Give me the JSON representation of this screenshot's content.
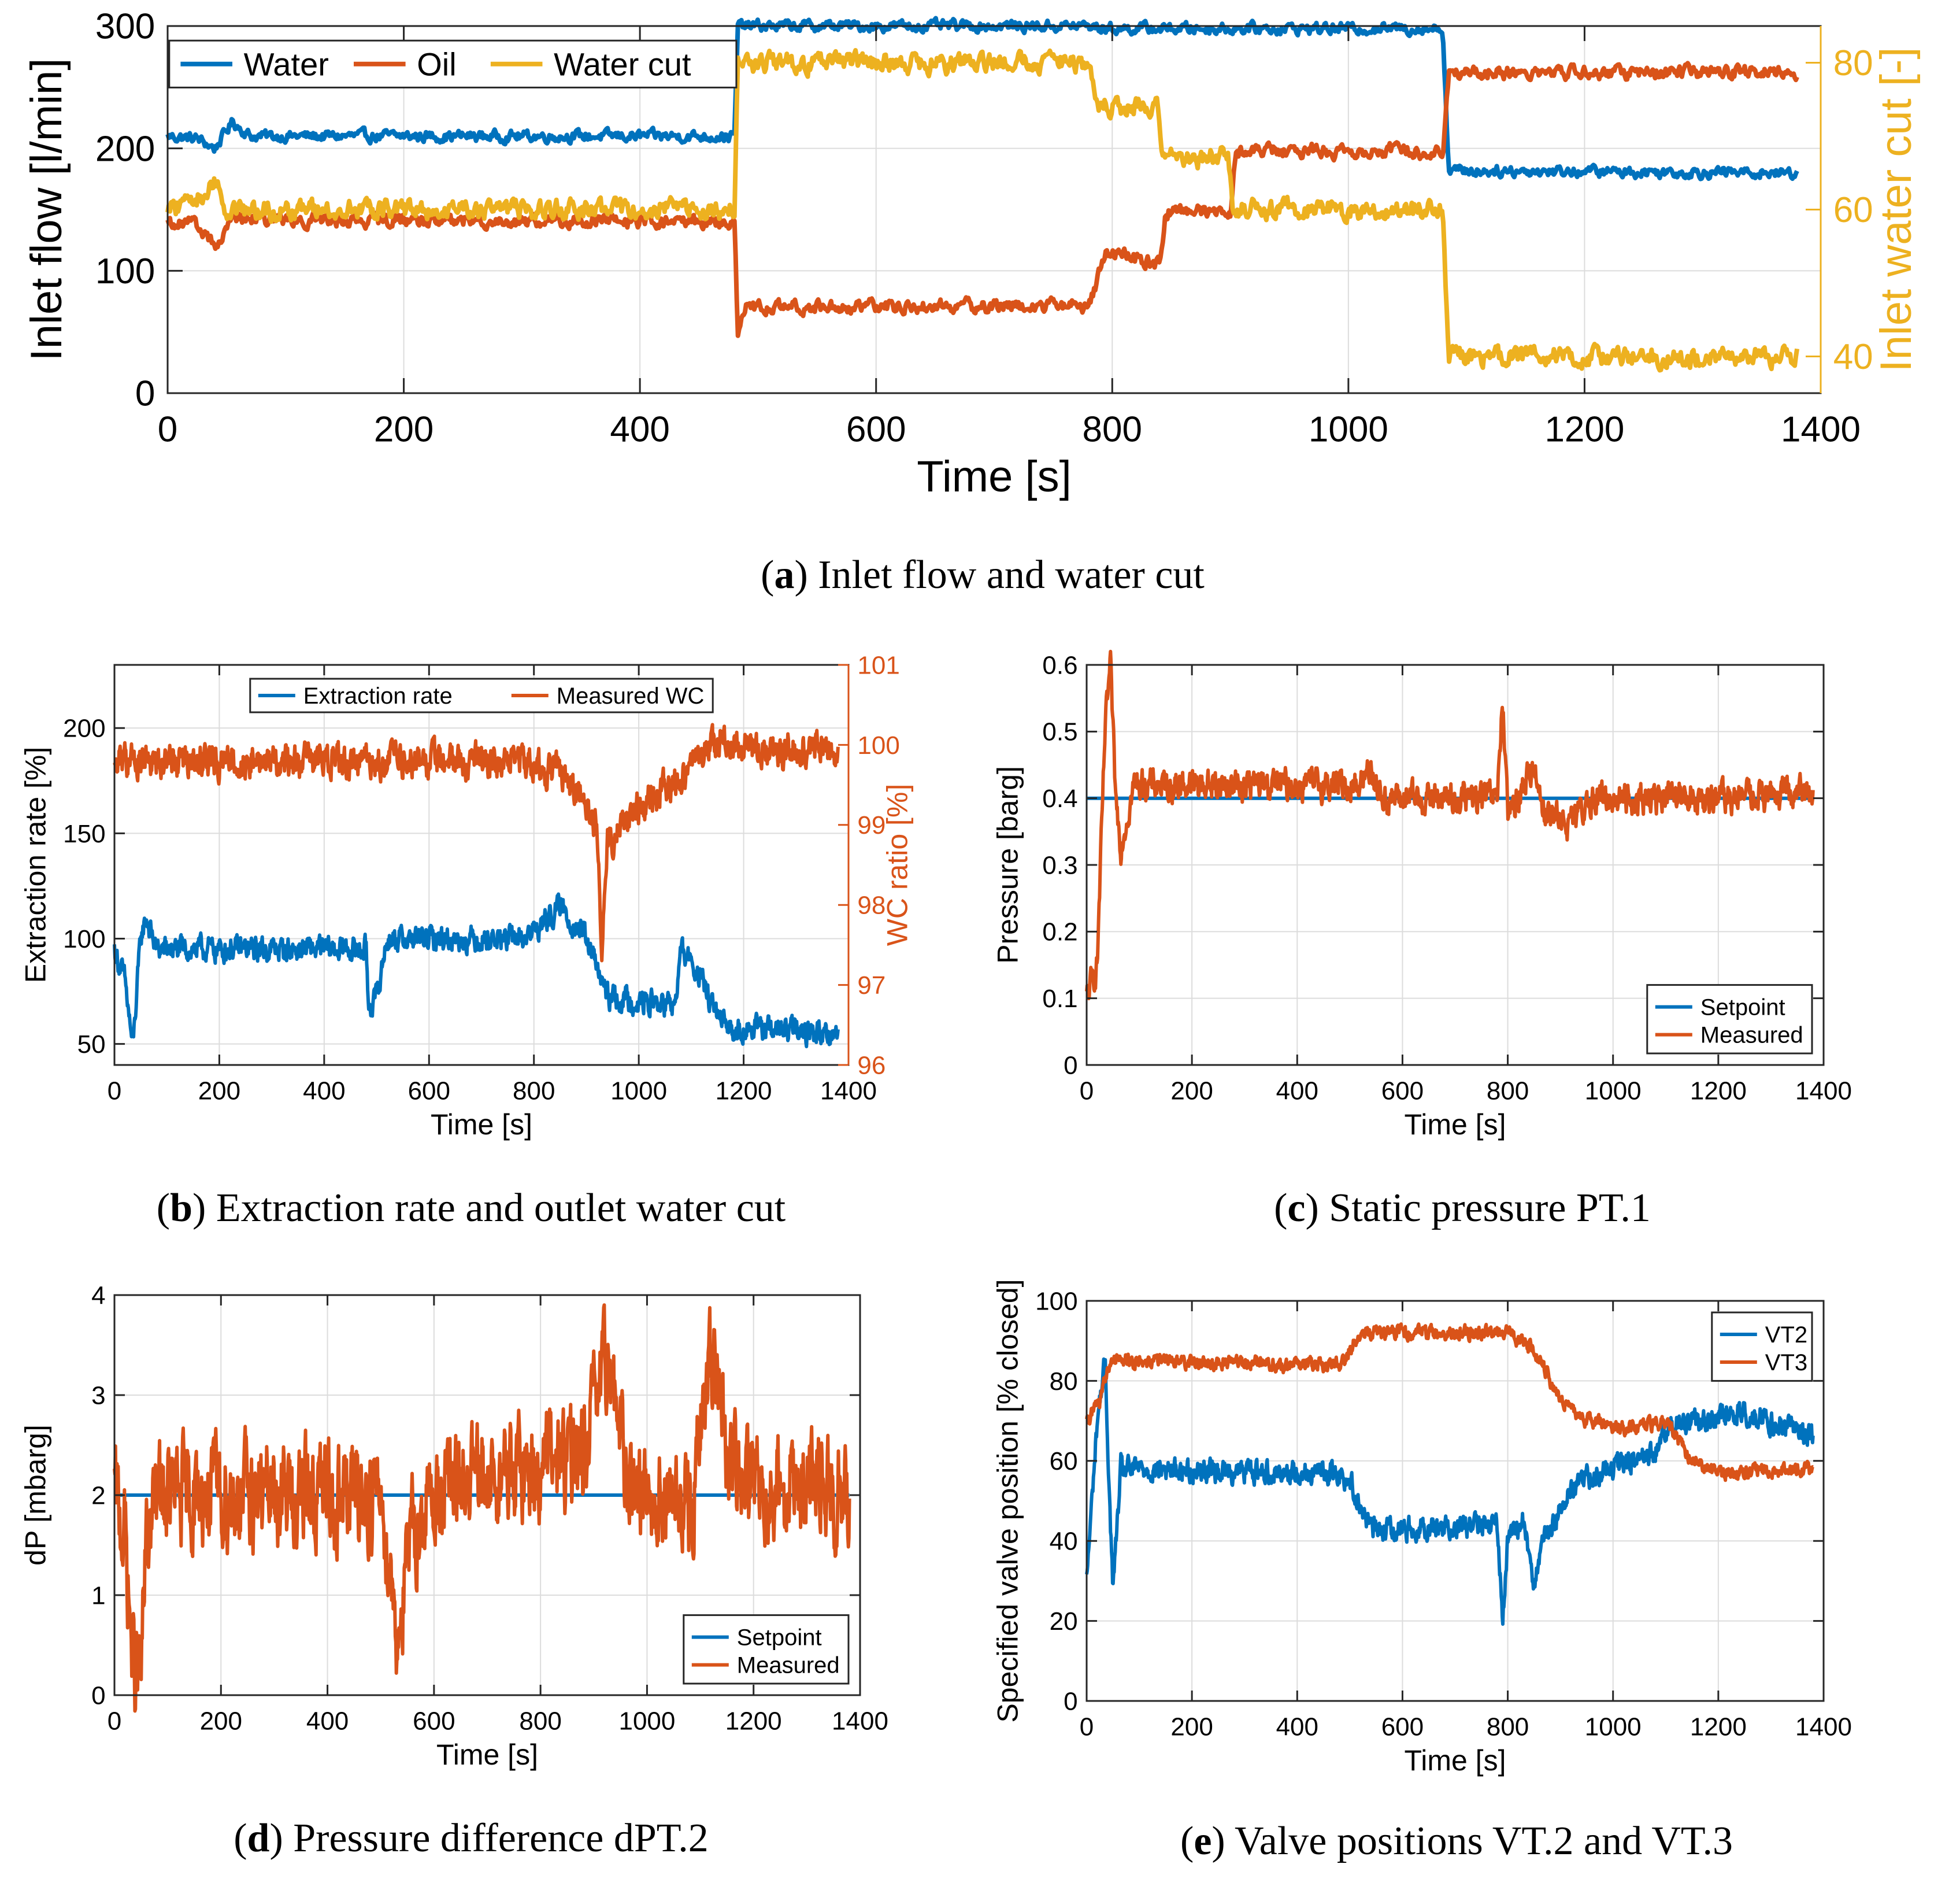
{
  "colors": {
    "blue": "#0072BD",
    "orange": "#D95319",
    "yellow": "#EDB120",
    "grid": "#dcdcdc",
    "axis": "#262626"
  },
  "panels": [
    {
      "id": "a",
      "caption": {
        "letter": "a",
        "text": " Inlet flow and water cut"
      },
      "chart_data": {
        "type": "line",
        "title": "",
        "xlabel": "Time [s]",
        "ylabel": "Inlet flow [l/min]",
        "ylabel_right": "Inlet water cut [-]",
        "xlim": [
          0,
          1400
        ],
        "ylim": [
          0,
          300
        ],
        "ylim_right": [
          35,
          85
        ],
        "xticks": [
          0,
          200,
          400,
          600,
          800,
          1000,
          1200,
          1400
        ],
        "yticks": [
          0,
          100,
          200,
          300
        ],
        "yticks_right": [
          40,
          60,
          80
        ],
        "legend": {
          "position": "top-left",
          "orientation": "horizontal"
        },
        "series": [
          {
            "name": "Water",
            "color": "blue",
            "axis": "left",
            "noise": 4,
            "points": [
              [
                0,
                210
              ],
              [
                25,
                208
              ],
              [
                40,
                200
              ],
              [
                55,
                222
              ],
              [
                70,
                210
              ],
              [
                480,
                210
              ],
              [
                483,
                300
              ],
              [
                780,
                300
              ],
              [
                795,
                298
              ],
              [
                1080,
                298
              ],
              [
                1085,
                182
              ],
              [
                1380,
                180
              ]
            ]
          },
          {
            "name": "Oil",
            "color": "orange",
            "axis": "left",
            "noise": 5,
            "points": [
              [
                0,
                140
              ],
              [
                25,
                138
              ],
              [
                40,
                120
              ],
              [
                55,
                142
              ],
              [
                480,
                140
              ],
              [
                483,
                45
              ],
              [
                490,
                70
              ],
              [
                780,
                72
              ],
              [
                795,
                115
              ],
              [
                840,
                105
              ],
              [
                845,
                148
              ],
              [
                900,
                150
              ],
              [
                905,
                198
              ],
              [
                1080,
                198
              ],
              [
                1085,
                262
              ],
              [
                1380,
                262
              ]
            ]
          },
          {
            "name": "Water cut",
            "color": "yellow",
            "axis": "right",
            "noise": 1.2,
            "points": [
              [
                0,
                60
              ],
              [
                30,
                62
              ],
              [
                40,
                64
              ],
              [
                50,
                60
              ],
              [
                480,
                60
              ],
              [
                483,
                80
              ],
              [
                780,
                80
              ],
              [
                790,
                74
              ],
              [
                838,
                74
              ],
              [
                842,
                67
              ],
              [
                898,
                67
              ],
              [
                902,
                60
              ],
              [
                1080,
                60
              ],
              [
                1085,
                40
              ],
              [
                1380,
                40
              ]
            ]
          }
        ]
      }
    },
    {
      "id": "b",
      "caption": {
        "letter": "b",
        "text": " Extraction rate and outlet water cut"
      },
      "chart_data": {
        "type": "line",
        "xlabel": "Time [s]",
        "ylabel": "Extraction rate [%]",
        "ylabel_right": "WC ratio [%]",
        "xlim": [
          0,
          1400
        ],
        "ylim": [
          40,
          230
        ],
        "ylim_right": [
          96,
          101
        ],
        "xticks": [
          0,
          200,
          400,
          600,
          800,
          1000,
          1200,
          1400
        ],
        "yticks": [
          50,
          100,
          150,
          200
        ],
        "yticks_right": [
          96,
          97,
          98,
          99,
          100,
          101
        ],
        "legend": {
          "position": "top-center",
          "orientation": "horizontal"
        },
        "series": [
          {
            "name": "Extraction rate",
            "color": "blue",
            "axis": "left",
            "noise": 5,
            "points": [
              [
                0,
                95
              ],
              [
                20,
                80
              ],
              [
                35,
                48
              ],
              [
                50,
                100
              ],
              [
                60,
                110
              ],
              [
                80,
                95
              ],
              [
                480,
                95
              ],
              [
                485,
                68
              ],
              [
                500,
                72
              ],
              [
                520,
                100
              ],
              [
                780,
                100
              ],
              [
                820,
                108
              ],
              [
                850,
                115
              ],
              [
                900,
                100
              ],
              [
                940,
                72
              ],
              [
                1070,
                68
              ],
              [
                1080,
                95
              ],
              [
                1110,
                85
              ],
              [
                1160,
                58
              ],
              [
                1380,
                55
              ]
            ]
          },
          {
            "name": "Measured WC",
            "color": "orange",
            "axis": "right",
            "noise": 0.18,
            "points": [
              [
                0,
                99.8
              ],
              [
                800,
                99.8
              ],
              [
                880,
                99.5
              ],
              [
                920,
                99.0
              ],
              [
                930,
                97.5
              ],
              [
                940,
                98.8
              ],
              [
                1000,
                99.2
              ],
              [
                1080,
                99.6
              ],
              [
                1140,
                100.05
              ],
              [
                1200,
                99.95
              ],
              [
                1380,
                99.95
              ]
            ]
          }
        ]
      }
    },
    {
      "id": "c",
      "caption": {
        "letter": "c",
        "text": " Static pressure PT.1"
      },
      "chart_data": {
        "type": "line",
        "xlabel": "Time [s]",
        "ylabel": "Pressure [barg]",
        "xlim": [
          0,
          1400
        ],
        "ylim": [
          0,
          0.6
        ],
        "xticks": [
          0,
          200,
          400,
          600,
          800,
          1000,
          1200,
          1400
        ],
        "yticks": [
          0,
          0.1,
          0.2,
          0.3,
          0.4,
          0.5,
          0.6
        ],
        "legend": {
          "position": "bottom-right",
          "orientation": "vertical"
        },
        "series": [
          {
            "name": "Setpoint",
            "color": "blue",
            "axis": "left",
            "noise": 0,
            "points": [
              [
                0,
                0.4
              ],
              [
                1380,
                0.4
              ]
            ]
          },
          {
            "name": "Measured",
            "color": "orange",
            "axis": "left",
            "noise": 0.02,
            "points": [
              [
                0,
                0.1
              ],
              [
                20,
                0.15
              ],
              [
                35,
                0.5
              ],
              [
                45,
                0.6
              ],
              [
                55,
                0.4
              ],
              [
                65,
                0.33
              ],
              [
                90,
                0.42
              ],
              [
                520,
                0.42
              ],
              [
                540,
                0.45
              ],
              [
                560,
                0.4
              ],
              [
                780,
                0.4
              ],
              [
                790,
                0.55
              ],
              [
                800,
                0.37
              ],
              [
                850,
                0.45
              ],
              [
                870,
                0.38
              ],
              [
                920,
                0.36
              ],
              [
                960,
                0.4
              ],
              [
                1200,
                0.4
              ],
              [
                1380,
                0.41
              ]
            ]
          }
        ]
      }
    },
    {
      "id": "d",
      "caption": {
        "letter": "d",
        "text": " Pressure difference dPT.2"
      },
      "chart_data": {
        "type": "line",
        "xlabel": "Time [s]",
        "ylabel": "dP [mbarg]",
        "xlim": [
          0,
          1400
        ],
        "ylim": [
          0,
          4
        ],
        "xticks": [
          0,
          200,
          400,
          600,
          800,
          1000,
          1200,
          1400
        ],
        "yticks": [
          0,
          1,
          2,
          3,
          4
        ],
        "legend": {
          "position": "bottom-right",
          "orientation": "vertical"
        },
        "series": [
          {
            "name": "Setpoint",
            "color": "blue",
            "axis": "left",
            "noise": 0,
            "points": [
              [
                0,
                2
              ],
              [
                1380,
                2
              ]
            ]
          },
          {
            "name": "Measured",
            "color": "orange",
            "axis": "left",
            "noise": 0.45,
            "points": [
              [
                0,
                2
              ],
              [
                20,
                1.6
              ],
              [
                35,
                0.3
              ],
              [
                50,
                0.2
              ],
              [
                60,
                1.5
              ],
              [
                80,
                2
              ],
              [
                500,
                2
              ],
              [
                520,
                1.2
              ],
              [
                530,
                0.6
              ],
              [
                560,
                1.6
              ],
              [
                600,
                2
              ],
              [
                880,
                2.4
              ],
              [
                930,
                3.4
              ],
              [
                960,
                2.2
              ],
              [
                1080,
                1.8
              ],
              [
                1120,
                3.3
              ],
              [
                1160,
                2.2
              ],
              [
                1380,
                2
              ]
            ]
          }
        ]
      }
    },
    {
      "id": "e",
      "caption": {
        "letter": "e",
        "text": " Valve positions VT.2 and VT.3"
      },
      "chart_data": {
        "type": "line",
        "xlabel": "Time [s]",
        "ylabel": "Specified valve position [% closed]",
        "xlim": [
          0,
          1400
        ],
        "ylim": [
          0,
          100
        ],
        "xticks": [
          0,
          200,
          400,
          600,
          800,
          1000,
          1200,
          1400
        ],
        "yticks": [
          0,
          20,
          40,
          60,
          80,
          100
        ],
        "legend": {
          "position": "top-right",
          "orientation": "vertical"
        },
        "series": [
          {
            "name": "VT2",
            "color": "blue",
            "axis": "left",
            "noise": 2.5,
            "points": [
              [
                0,
                30
              ],
              [
                20,
                70
              ],
              [
                35,
                85
              ],
              [
                45,
                45
              ],
              [
                50,
                28
              ],
              [
                65,
                58
              ],
              [
                480,
                57
              ],
              [
                500,
                55
              ],
              [
                540,
                43
              ],
              [
                780,
                44
              ],
              [
                790,
                20
              ],
              [
                800,
                40
              ],
              [
                830,
                45
              ],
              [
                850,
                30
              ],
              [
                870,
                40
              ],
              [
                900,
                48
              ],
              [
                930,
                55
              ],
              [
                1000,
                58
              ],
              [
                1080,
                62
              ],
              [
                1100,
                68
              ],
              [
                1150,
                70
              ],
              [
                1250,
                72
              ],
              [
                1300,
                70
              ],
              [
                1380,
                66
              ]
            ]
          },
          {
            "name": "VT3",
            "color": "orange",
            "axis": "left",
            "noise": 1.5,
            "points": [
              [
                0,
                70
              ],
              [
                25,
                75
              ],
              [
                45,
                85
              ],
              [
                480,
                84
              ],
              [
                520,
                92
              ],
              [
                800,
                92
              ],
              [
                850,
                88
              ],
              [
                900,
                75
              ],
              [
                950,
                70
              ],
              [
                1050,
                68
              ],
              [
                1100,
                70
              ],
              [
                1150,
                60
              ],
              [
                1200,
                57
              ],
              [
                1380,
                58
              ]
            ]
          }
        ]
      }
    }
  ]
}
